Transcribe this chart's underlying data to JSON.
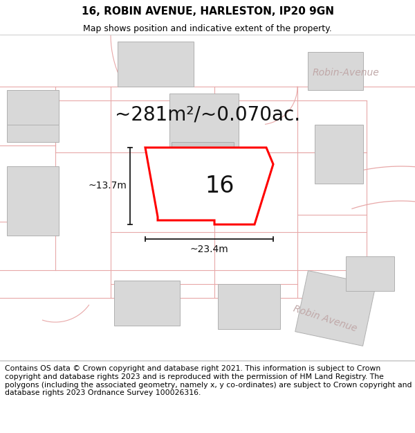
{
  "title_line1": "16, ROBIN AVENUE, HARLESTON, IP20 9GN",
  "title_line2": "Map shows position and indicative extent of the property.",
  "footer_text": "Contains OS data © Crown copyright and database right 2021. This information is subject to Crown copyright and database rights 2023 and is reproduced with the permission of HM Land Registry. The polygons (including the associated geometry, namely x, y co-ordinates) are subject to Crown copyright and database rights 2023 Ordnance Survey 100026316.",
  "area_label": "~281m²/~0.070ac.",
  "width_label": "~23.4m",
  "height_label": "~13.7m",
  "number_label": "16",
  "bg_color": "#ffffff",
  "map_bg": "#f7f4f4",
  "lot_line_color": "#e8a8a8",
  "building_fill": "#d8d8d8",
  "building_edge": "#b0b0b0",
  "plot_fill": "#ffffff",
  "plot_edge": "#ff0000",
  "plot_linewidth": 2.2,
  "road_label_color": "#c0a8a8",
  "dim_line_color": "#1a1a1a",
  "title_fontsize": 11,
  "subtitle_fontsize": 9,
  "footer_fontsize": 7.8,
  "area_fontsize": 20,
  "number_fontsize": 24,
  "dim_fontsize": 10,
  "road_label_fontsize": 10
}
